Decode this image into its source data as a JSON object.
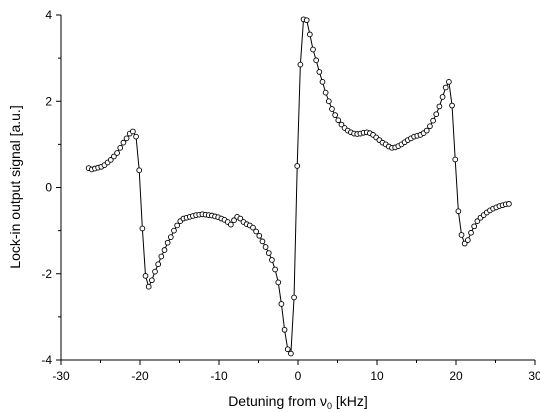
{
  "chart_data": {
    "type": "line",
    "title": "",
    "xlabel": "Detuning from ν0 [kHz]",
    "ylabel": "Lock-in output signal [a.u.]",
    "xlim": [
      -30,
      30
    ],
    "ylim": [
      -4,
      4
    ],
    "xticks": [
      -30,
      -20,
      -10,
      0,
      10,
      20,
      30
    ],
    "yticks": [
      -4,
      -2,
      0,
      2,
      4
    ],
    "grid": false,
    "legend": "none",
    "marker": "open-circle",
    "x": [
      -26.5,
      -26.1,
      -25.7,
      -25.3,
      -24.9,
      -24.5,
      -24.1,
      -23.7,
      -23.3,
      -22.9,
      -22.5,
      -22.1,
      -21.7,
      -21.3,
      -20.9,
      -20.5,
      -20.1,
      -19.7,
      -19.3,
      -18.9,
      -18.5,
      -18.1,
      -17.7,
      -17.3,
      -16.9,
      -16.5,
      -16.1,
      -15.7,
      -15.3,
      -14.9,
      -14.5,
      -14.1,
      -13.7,
      -13.3,
      -12.9,
      -12.5,
      -12.1,
      -11.7,
      -11.3,
      -10.9,
      -10.5,
      -10.1,
      -9.7,
      -9.3,
      -8.9,
      -8.5,
      -8.1,
      -7.7,
      -7.3,
      -6.9,
      -6.5,
      -6.1,
      -5.7,
      -5.3,
      -4.9,
      -4.5,
      -4.1,
      -3.7,
      -3.3,
      -2.9,
      -2.5,
      -2.1,
      -1.7,
      -1.3,
      -0.9,
      -0.5,
      -0.1,
      0.3,
      0.7,
      1.1,
      1.5,
      1.9,
      2.3,
      2.7,
      3.1,
      3.5,
      3.9,
      4.3,
      4.7,
      5.1,
      5.5,
      5.9,
      6.3,
      6.7,
      7.1,
      7.5,
      7.9,
      8.3,
      8.7,
      9.1,
      9.5,
      9.9,
      10.3,
      10.7,
      11.1,
      11.5,
      11.9,
      12.3,
      12.7,
      13.1,
      13.5,
      13.9,
      14.3,
      14.7,
      15.1,
      15.5,
      15.9,
      16.3,
      16.7,
      17.1,
      17.5,
      17.9,
      18.3,
      18.7,
      19.1,
      19.5,
      19.9,
      20.3,
      20.7,
      21.1,
      21.5,
      21.9,
      22.3,
      22.7,
      23.1,
      23.5,
      23.9,
      24.3,
      24.7,
      25.1,
      25.5,
      25.9,
      26.3,
      26.7
    ],
    "y": [
      0.45,
      0.42,
      0.44,
      0.46,
      0.48,
      0.52,
      0.58,
      0.64,
      0.72,
      0.8,
      0.92,
      1.04,
      1.14,
      1.25,
      1.3,
      1.18,
      0.4,
      -0.95,
      -2.05,
      -2.3,
      -2.15,
      -1.95,
      -1.78,
      -1.6,
      -1.45,
      -1.28,
      -1.15,
      -1.0,
      -0.88,
      -0.78,
      -0.72,
      -0.7,
      -0.68,
      -0.66,
      -0.64,
      -0.63,
      -0.62,
      -0.63,
      -0.64,
      -0.65,
      -0.67,
      -0.69,
      -0.72,
      -0.75,
      -0.8,
      -0.86,
      -0.76,
      -0.68,
      -0.72,
      -0.8,
      -0.85,
      -0.88,
      -0.93,
      -1.02,
      -1.12,
      -1.25,
      -1.38,
      -1.52,
      -1.68,
      -1.9,
      -2.2,
      -2.7,
      -3.3,
      -3.75,
      -3.85,
      -2.55,
      0.5,
      2.85,
      3.9,
      3.88,
      3.55,
      3.2,
      2.95,
      2.68,
      2.45,
      2.2,
      2.0,
      1.82,
      1.68,
      1.56,
      1.46,
      1.38,
      1.32,
      1.28,
      1.25,
      1.24,
      1.25,
      1.27,
      1.28,
      1.26,
      1.22,
      1.16,
      1.1,
      1.04,
      1.0,
      0.95,
      0.92,
      0.93,
      0.96,
      1.0,
      1.05,
      1.1,
      1.14,
      1.18,
      1.2,
      1.22,
      1.26,
      1.32,
      1.42,
      1.55,
      1.7,
      1.88,
      2.1,
      2.32,
      2.45,
      1.9,
      0.65,
      -0.55,
      -1.1,
      -1.3,
      -1.22,
      -1.05,
      -0.9,
      -0.78,
      -0.7,
      -0.64,
      -0.58,
      -0.53,
      -0.49,
      -0.46,
      -0.43,
      -0.41,
      -0.39,
      -0.38
    ]
  }
}
